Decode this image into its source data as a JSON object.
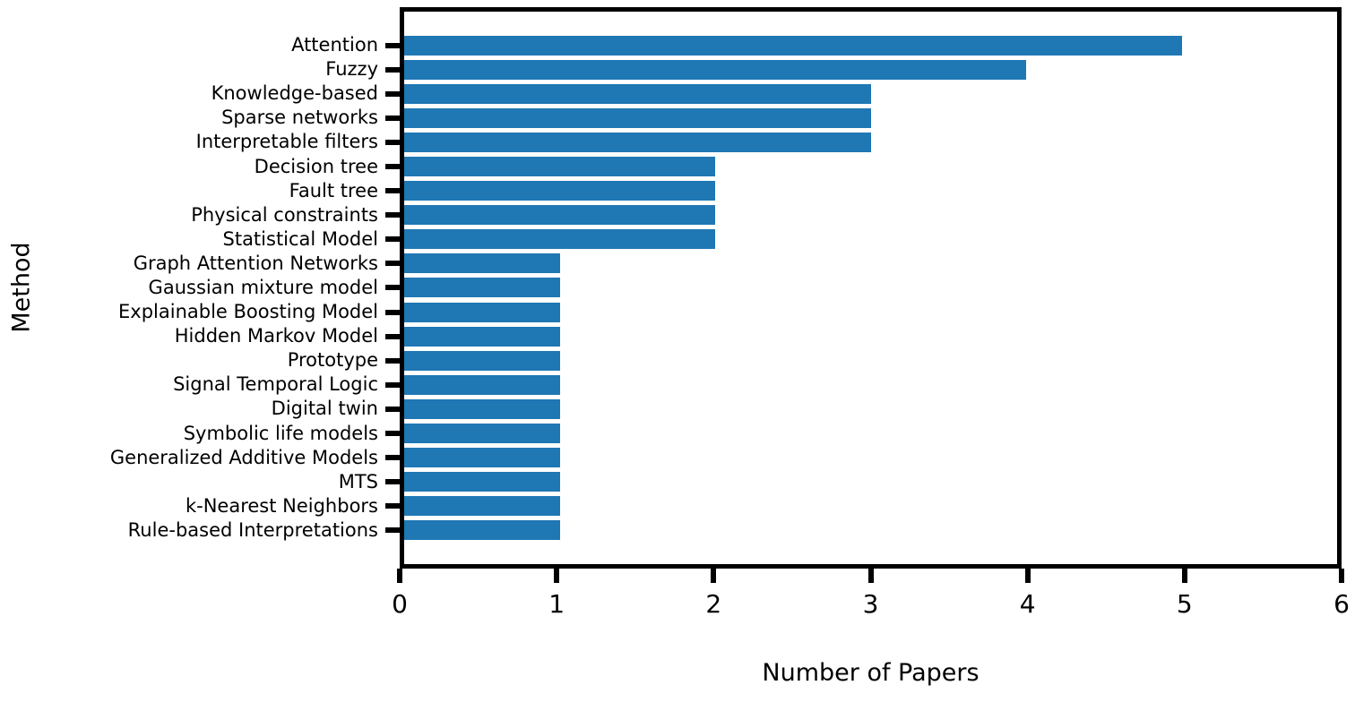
{
  "chart_data": {
    "type": "bar",
    "orientation": "horizontal",
    "title": "",
    "xlabel": "Number of Papers",
    "ylabel": "Method",
    "xlim": [
      0,
      6
    ],
    "xticks": [
      0,
      1,
      2,
      3,
      4,
      5,
      6
    ],
    "grid": false,
    "legend": false,
    "bar_color": "#1f77b4",
    "axis_color": "#000000",
    "background_color": "#ffffff",
    "categories": [
      "Attention",
      "Fuzzy",
      "Knowledge-based",
      "Sparse networks",
      "Interpretable filters",
      "Decision tree",
      "Fault tree",
      "Physical constraints",
      "Statistical Model",
      "Graph Attention Networks",
      "Gaussian mixture model",
      "Explainable Boosting Model",
      "Hidden Markov Model",
      "Prototype",
      "Signal Temporal Logic",
      "Digital twin",
      "Symbolic life models",
      "Generalized Additive Models",
      "MTS",
      "k-Nearest Neighbors",
      "Rule-based Interpretations"
    ],
    "values": [
      5,
      4,
      3,
      3,
      3,
      2,
      2,
      2,
      2,
      1,
      1,
      1,
      1,
      1,
      1,
      1,
      1,
      1,
      1,
      1,
      1
    ]
  }
}
